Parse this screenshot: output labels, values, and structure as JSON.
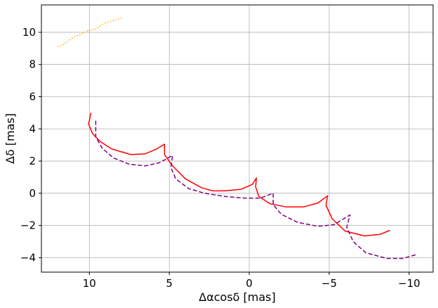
{
  "chart_data": {
    "type": "line",
    "xlabel": "Δαcosδ [mas]",
    "ylabel": "Δδ [mas]",
    "xlim": [
      13.0,
      -11.5
    ],
    "ylim": [
      -4.9,
      11.7
    ],
    "x_ticks": [
      10,
      5,
      0,
      -5,
      -10
    ],
    "x_tick_labels": [
      "10",
      "5",
      "0",
      "−5",
      "−10"
    ],
    "y_ticks": [
      -4,
      -2,
      0,
      2,
      4,
      6,
      8,
      10
    ],
    "y_tick_labels": [
      "−4",
      "−2",
      "0",
      "2",
      "4",
      "6",
      "8",
      "10"
    ],
    "grid": true,
    "series": [
      {
        "color": "#ff0000",
        "style": "solid",
        "points": [
          [
            9.9,
            5.0
          ],
          [
            10.05,
            4.3
          ],
          [
            9.8,
            3.7
          ],
          [
            9.3,
            3.2
          ],
          [
            8.6,
            2.75
          ],
          [
            7.4,
            2.4
          ],
          [
            6.5,
            2.45
          ],
          [
            5.8,
            2.75
          ],
          [
            5.3,
            3.05
          ],
          [
            5.3,
            2.4
          ],
          [
            4.8,
            1.7
          ],
          [
            4.0,
            0.9
          ],
          [
            3.0,
            0.35
          ],
          [
            2.3,
            0.15
          ],
          [
            1.5,
            0.15
          ],
          [
            0.5,
            0.25
          ],
          [
            -0.2,
            0.55
          ],
          [
            -0.45,
            0.95
          ],
          [
            -0.4,
            0.4
          ],
          [
            -0.6,
            -0.2
          ],
          [
            -1.3,
            -0.65
          ],
          [
            -2.3,
            -0.85
          ],
          [
            -3.4,
            -0.85
          ],
          [
            -4.3,
            -0.6
          ],
          [
            -4.9,
            -0.15
          ],
          [
            -4.8,
            -0.75
          ],
          [
            -5.2,
            -1.6
          ],
          [
            -6.0,
            -2.35
          ],
          [
            -7.2,
            -2.65
          ],
          [
            -8.2,
            -2.55
          ],
          [
            -8.8,
            -2.3
          ]
        ]
      },
      {
        "color": "#800080",
        "style": "dashed",
        "points": [
          [
            9.6,
            4.5
          ],
          [
            9.6,
            3.5
          ],
          [
            9.2,
            2.8
          ],
          [
            8.5,
            2.2
          ],
          [
            7.5,
            1.8
          ],
          [
            6.5,
            1.7
          ],
          [
            5.6,
            1.9
          ],
          [
            4.8,
            2.35
          ],
          [
            4.9,
            1.6
          ],
          [
            4.6,
            0.9
          ],
          [
            3.8,
            0.3
          ],
          [
            2.8,
            0.0
          ],
          [
            1.5,
            -0.2
          ],
          [
            0.3,
            -0.3
          ],
          [
            -0.7,
            -0.3
          ],
          [
            -1.5,
            0.0
          ],
          [
            -1.5,
            -0.7
          ],
          [
            -2.0,
            -1.3
          ],
          [
            -3.0,
            -1.8
          ],
          [
            -4.3,
            -2.05
          ],
          [
            -5.3,
            -1.95
          ],
          [
            -6.3,
            -1.35
          ],
          [
            -6.1,
            -2.1
          ],
          [
            -6.5,
            -3.0
          ],
          [
            -7.3,
            -3.7
          ],
          [
            -8.6,
            -4.05
          ],
          [
            -9.6,
            -4.05
          ],
          [
            -10.5,
            -3.8
          ]
        ]
      },
      {
        "color": "#ffa500",
        "style": "dotted",
        "points": [
          [
            12.0,
            9.1
          ],
          [
            11.6,
            9.25
          ],
          [
            11.0,
            9.7
          ],
          [
            10.6,
            9.85
          ],
          [
            10.1,
            10.1
          ],
          [
            9.6,
            10.2
          ],
          [
            9.1,
            10.55
          ],
          [
            8.6,
            10.7
          ],
          [
            8.0,
            10.9
          ]
        ]
      }
    ]
  }
}
